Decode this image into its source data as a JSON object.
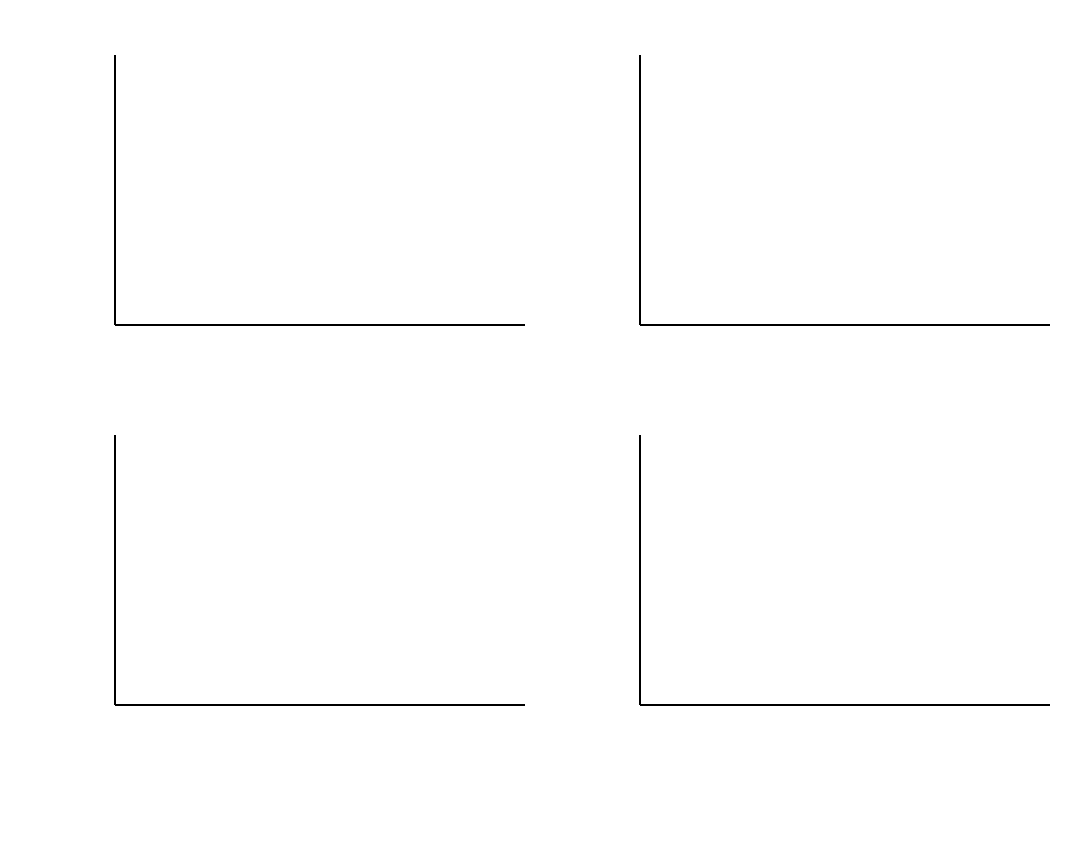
{
  "chart_data": [
    {
      "type": "bar",
      "panel": "",
      "ylabel": "",
      "yticks": [],
      "ylim": [],
      "categories": [],
      "values": [],
      "errors": [],
      "colors": [],
      "annotations": []
    },
    {
      "type": "bar",
      "panel": "",
      "ylabel": "",
      "yticks": [],
      "ylim": [],
      "categories": [],
      "values": [],
      "errors": [],
      "colors": [],
      "annotations": []
    },
    {
      "type": "bar",
      "panel": "",
      "ylabel": "",
      "yticks": [],
      "ylim": [],
      "categories": [],
      "values": [],
      "errors": [],
      "colors": [],
      "annotations": []
    },
    {
      "type": "bar",
      "panel": "",
      "ylabel": "",
      "yticks": [],
      "ylim": [],
      "categories": [],
      "values": [],
      "errors": [],
      "colors": [],
      "annotations": []
    }
  ],
  "watermark": ""
}
